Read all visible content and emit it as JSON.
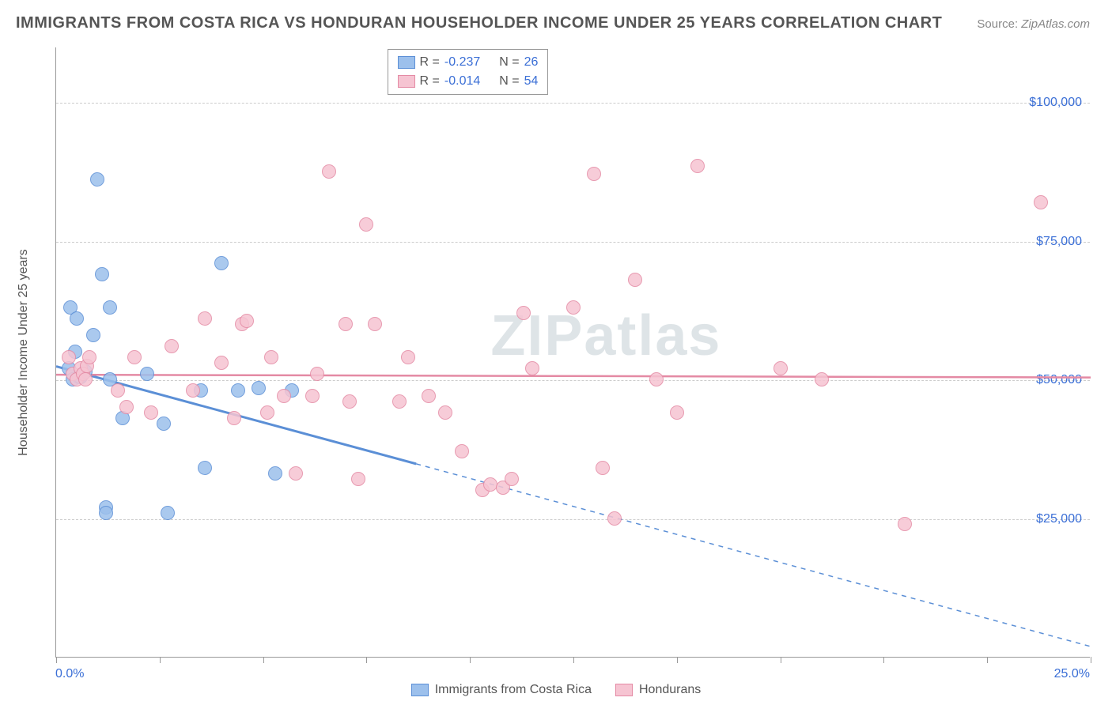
{
  "title": "IMMIGRANTS FROM COSTA RICA VS HONDURAN HOUSEHOLDER INCOME UNDER 25 YEARS CORRELATION CHART",
  "source_label": "Source:",
  "source_value": "ZipAtlas.com",
  "y_axis_label": "Householder Income Under 25 years",
  "watermark": "ZIPatlas",
  "chart": {
    "type": "scatter",
    "xlim": [
      0,
      25
    ],
    "ylim": [
      0,
      110000
    ],
    "x_min_label": "0.0%",
    "x_max_label": "25.0%",
    "y_ticks": [
      25000,
      50000,
      75000,
      100000
    ],
    "y_tick_labels": [
      "$25,000",
      "$50,000",
      "$75,000",
      "$100,000"
    ],
    "x_ticks": [
      0,
      2.5,
      5,
      7.5,
      10,
      12.5,
      15,
      17.5,
      20,
      22.5,
      25
    ],
    "background_color": "#ffffff",
    "grid_color": "#cccccc",
    "marker_radius": 9,
    "marker_border_width": 1.5,
    "marker_fill_opacity": 0.28,
    "series": [
      {
        "name": "Immigrants from Costa Rica",
        "color": "#5b8fd6",
        "fill": "#9cc0ec",
        "r_value": "-0.237",
        "n_value": "26",
        "trend": {
          "y_at_xmin": 52500,
          "y_at_xmax": 2000,
          "solid_until_x": 8.7
        },
        "points": [
          [
            0.3,
            52000
          ],
          [
            0.35,
            63000
          ],
          [
            0.4,
            50000
          ],
          [
            0.45,
            55000
          ],
          [
            0.5,
            61000
          ],
          [
            0.55,
            50500
          ],
          [
            0.6,
            50500
          ],
          [
            0.7,
            51500
          ],
          [
            0.9,
            58000
          ],
          [
            1.0,
            86000
          ],
          [
            1.1,
            69000
          ],
          [
            1.2,
            27000
          ],
          [
            1.2,
            26000
          ],
          [
            1.3,
            50000
          ],
          [
            1.3,
            63000
          ],
          [
            1.6,
            43000
          ],
          [
            2.2,
            51000
          ],
          [
            2.6,
            42000
          ],
          [
            2.7,
            26000
          ],
          [
            3.5,
            48000
          ],
          [
            3.6,
            34000
          ],
          [
            4.0,
            71000
          ],
          [
            4.4,
            48000
          ],
          [
            4.9,
            48500
          ],
          [
            5.3,
            33000
          ],
          [
            5.7,
            48000
          ]
        ]
      },
      {
        "name": "Hondurans",
        "color": "#e48aa4",
        "fill": "#f6c4d2",
        "r_value": "-0.014",
        "n_value": "54",
        "trend": {
          "y_at_xmin": 51000,
          "y_at_xmax": 50500,
          "solid_until_x": 25
        },
        "points": [
          [
            0.3,
            54000
          ],
          [
            0.4,
            51000
          ],
          [
            0.5,
            50000
          ],
          [
            0.6,
            52000
          ],
          [
            0.65,
            51000
          ],
          [
            0.7,
            50000
          ],
          [
            0.75,
            52500
          ],
          [
            0.8,
            54000
          ],
          [
            1.5,
            48000
          ],
          [
            1.7,
            45000
          ],
          [
            1.9,
            54000
          ],
          [
            2.3,
            44000
          ],
          [
            2.8,
            56000
          ],
          [
            3.3,
            48000
          ],
          [
            3.6,
            61000
          ],
          [
            4.0,
            53000
          ],
          [
            4.3,
            43000
          ],
          [
            4.5,
            60000
          ],
          [
            4.6,
            60500
          ],
          [
            5.1,
            44000
          ],
          [
            5.2,
            54000
          ],
          [
            5.5,
            47000
          ],
          [
            5.8,
            33000
          ],
          [
            6.2,
            47000
          ],
          [
            6.3,
            51000
          ],
          [
            6.6,
            87500
          ],
          [
            7.0,
            60000
          ],
          [
            7.1,
            46000
          ],
          [
            7.3,
            32000
          ],
          [
            7.5,
            78000
          ],
          [
            7.7,
            60000
          ],
          [
            8.3,
            46000
          ],
          [
            8.5,
            54000
          ],
          [
            9.0,
            47000
          ],
          [
            9.4,
            44000
          ],
          [
            9.8,
            37000
          ],
          [
            10.3,
            30000
          ],
          [
            10.5,
            31000
          ],
          [
            10.8,
            30500
          ],
          [
            11.0,
            32000
          ],
          [
            11.3,
            62000
          ],
          [
            11.5,
            52000
          ],
          [
            12.5,
            63000
          ],
          [
            13.0,
            87000
          ],
          [
            13.2,
            34000
          ],
          [
            13.5,
            25000
          ],
          [
            14.0,
            68000
          ],
          [
            14.5,
            50000
          ],
          [
            15.0,
            44000
          ],
          [
            15.5,
            88500
          ],
          [
            17.5,
            52000
          ],
          [
            18.5,
            50000
          ],
          [
            20.5,
            24000
          ],
          [
            23.8,
            82000
          ]
        ]
      }
    ]
  },
  "legend_top": {
    "r_label": "R =",
    "n_label": "N ="
  }
}
